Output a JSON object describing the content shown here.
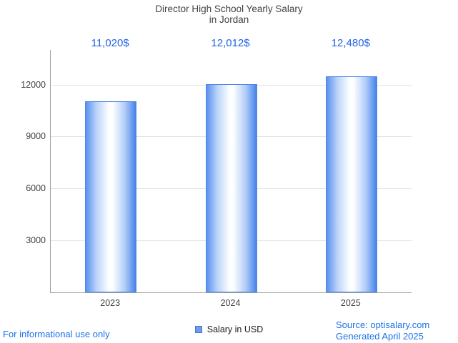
{
  "header": {
    "title_line1": "Director High School Yearly Salary",
    "title_line2": "in Jordan"
  },
  "chart_data": {
    "type": "bar",
    "title": "Director High School Yearly Salary in Jordan",
    "categories": [
      "2023",
      "2024",
      "2025"
    ],
    "values": [
      11020,
      12012,
      12480
    ],
    "value_labels": [
      "11,020$",
      "12,012$",
      "12,480$"
    ],
    "xlabel": "",
    "ylabel": "",
    "ylim": [
      0,
      14000
    ],
    "yticks": [
      3000,
      6000,
      9000,
      12000
    ],
    "grid": true,
    "legend": "Salary in USD",
    "legend_position": "bottom"
  },
  "colors": {
    "bar_edge": "#5088e8",
    "bar_fill_light": "#fdfeff",
    "bar_fill_dark": "#4583ea",
    "value_label": "#2163e6",
    "link_blue": "#1a73e8",
    "axis_gray": "#9e9e9e",
    "grid_gray": "#e3e3e3",
    "text_gray": "#424242"
  },
  "footer": {
    "disclaimer": "For informational use only",
    "source": "Source: optisalary.com",
    "generated": "Generated April 2025"
  }
}
